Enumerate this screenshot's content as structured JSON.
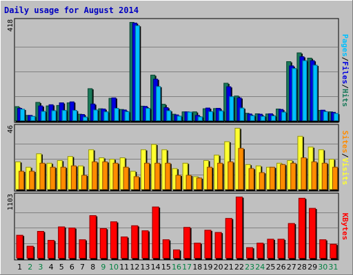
{
  "chart_data": {
    "type": "bar",
    "title": "Daily usage for August 2014",
    "days": [
      "1",
      "2",
      "3",
      "4",
      "5",
      "6",
      "7",
      "8",
      "9",
      "10",
      "11",
      "12",
      "13",
      "14",
      "15",
      "16",
      "17",
      "18",
      "19",
      "20",
      "21",
      "22",
      "23",
      "24",
      "25",
      "26",
      "27",
      "28",
      "29",
      "30",
      "31"
    ],
    "weekend_days": [
      "2",
      "3",
      "9",
      "10",
      "16",
      "17",
      "23",
      "24",
      "30",
      "31"
    ],
    "colors": {
      "title": "#0000c0",
      "weekday_label": "#000000",
      "weekend_label": "#008040",
      "hits": "#1a7a5a",
      "files": "#0000e0",
      "pages": "#00c0ff",
      "visits": "#ffff30",
      "sites": "#ff8c00",
      "kbytes": "#ff0000",
      "slash": "#000000"
    },
    "panels": [
      {
        "id": "hits-files-pages",
        "ytick": "418",
        "ymax": 418,
        "legend": [
          {
            "label": "Hits",
            "key": "hits"
          },
          {
            "label": "/",
            "key": "slash"
          },
          {
            "label": "Files",
            "key": "files"
          },
          {
            "label": "/",
            "key": "slash"
          },
          {
            "label": "Pages",
            "key": "pages"
          }
        ],
        "series": [
          {
            "key": "hits",
            "values": [
              62,
              25,
              80,
              65,
              67,
              78,
              30,
              138,
              53,
              97,
              50,
              418,
              64,
              195,
              72,
              30,
              40,
              40,
              53,
              54,
              161,
              107,
              34,
              32,
              31,
              52,
              252,
              289,
              267,
              46,
              40
            ]
          },
          {
            "key": "files",
            "values": [
              55,
              25,
              65,
              70,
              78,
              82,
              29,
              73,
              52,
              99,
              48,
              415,
              63,
              178,
              58,
              27,
              40,
              25,
              56,
              55,
              146,
              99,
              31,
              30,
              32,
              50,
              234,
              273,
              256,
              47,
              38
            ]
          },
          {
            "key": "pages",
            "values": [
              51,
              21,
              42,
              45,
              46,
              46,
              18,
              48,
              40,
              55,
              41,
              404,
              55,
              147,
              45,
              22,
              39,
              19,
              41,
              44,
              104,
              56,
              24,
              21,
              23,
              39,
              223,
              256,
              237,
              41,
              33
            ]
          }
        ]
      },
      {
        "id": "visits-sites",
        "ytick": "46",
        "ymax": 46,
        "legend": [
          {
            "label": "Visits",
            "key": "visits"
          },
          {
            "label": "/",
            "key": "slash"
          },
          {
            "label": "Sites",
            "key": "sites"
          }
        ],
        "series": [
          {
            "key": "visits",
            "values": [
              21,
              17,
              27,
              20,
              22,
              25,
              18,
              30,
              24,
              23,
              24,
              14,
              30,
              34,
              30,
              16,
              20,
              10,
              22,
              26,
              36,
              46,
              19,
              18,
              17,
              20,
              22,
              40,
              32,
              30,
              23
            ]
          },
          {
            "key": "sites",
            "values": [
              14,
              14,
              20,
              17,
              17,
              18,
              11,
              21,
              21,
              20,
              17,
              10,
              20,
              20,
              20,
              11,
              11,
              9,
              17,
              20,
              21,
              31,
              16,
              13,
              17,
              19,
              20,
              24,
              21,
              20,
              17
            ]
          }
        ]
      },
      {
        "id": "kbytes",
        "ytick": "1103",
        "ymax": 1103,
        "legend": [
          {
            "label": "KBytes",
            "key": "kbytes"
          }
        ],
        "series": [
          {
            "key": "kbytes",
            "values": [
              420,
              225,
              490,
              330,
              570,
              550,
              340,
              770,
              540,
              660,
              390,
              590,
              500,
              925,
              340,
              160,
              560,
              280,
              510,
              470,
              720,
              1103,
              200,
              280,
              350,
              350,
              630,
              1080,
              900,
              340,
              260
            ]
          }
        ]
      }
    ]
  }
}
